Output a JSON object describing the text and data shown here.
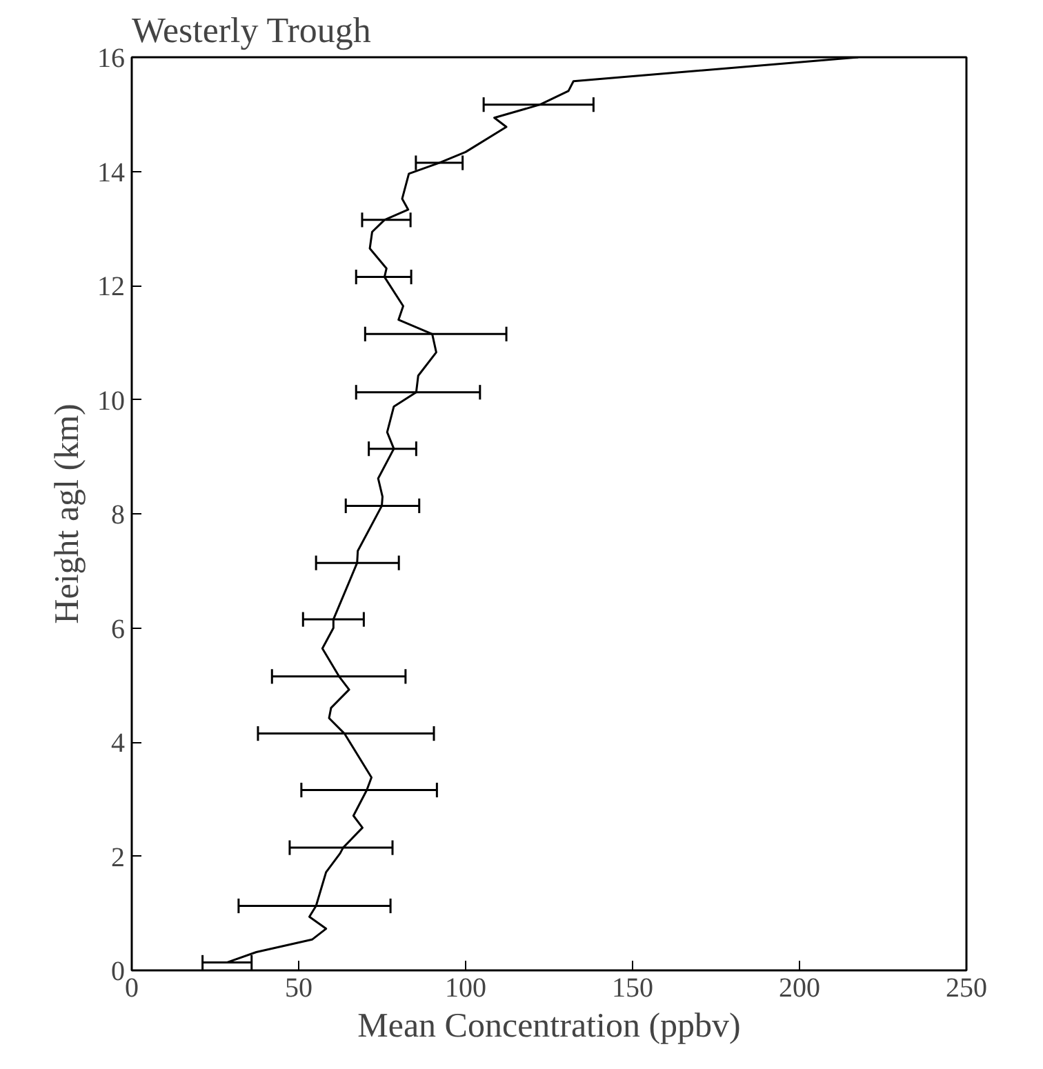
{
  "chart_data": {
    "type": "line",
    "title": "Westerly Trough",
    "xlabel": "Mean Concentration (ppbv)",
    "ylabel": "Height agl (km)",
    "xlim": [
      0,
      250
    ],
    "xticks": [
      0,
      50,
      100,
      150,
      200,
      250
    ],
    "ylim": [
      0,
      16
    ],
    "yticks": [
      0,
      2,
      4,
      6,
      8,
      10,
      12,
      14,
      16
    ],
    "marker": "none",
    "line_style": "solid",
    "series": [
      {
        "color": "#000000",
        "x": [
          28.6,
          37.3,
          54.0,
          58.2,
          53.2,
          55.2,
          58.2,
          62.4,
          63.3,
          69.1,
          66.4,
          70.4,
          71.8,
          63.7,
          59.1,
          59.7,
          65.1,
          62.1,
          57.1,
          60.4,
          60.4,
          67.5,
          67.7,
          74.9,
          75.1,
          73.8,
          78.5,
          76.5,
          78.5,
          85.2,
          85.8,
          91.2,
          90.0,
          79.9,
          81.3,
          75.7,
          76.3,
          71.3,
          72.0,
          75.7,
          82.8,
          81.0,
          83.0,
          92.1,
          100.0,
          112.2,
          108.6,
          122.3,
          130.8,
          132.3,
          217.6
        ],
        "values": [
          0.14,
          0.32,
          0.54,
          0.73,
          0.94,
          1.13,
          1.72,
          2.05,
          2.15,
          2.5,
          2.71,
          3.16,
          3.38,
          4.15,
          4.42,
          4.6,
          4.92,
          5.15,
          5.64,
          6.0,
          6.15,
          7.14,
          7.35,
          8.14,
          8.3,
          8.62,
          9.14,
          9.43,
          9.88,
          10.13,
          10.42,
          10.83,
          11.15,
          11.4,
          11.64,
          12.15,
          12.3,
          12.65,
          12.94,
          13.15,
          13.33,
          13.52,
          13.96,
          14.15,
          14.34,
          14.78,
          14.94,
          15.17,
          15.41,
          15.58,
          16.0
        ],
        "xerrors": [
          [
            21.2,
            35.9
          ],
          null,
          null,
          null,
          null,
          [
            32.0,
            77.5
          ],
          null,
          null,
          [
            47.3,
            78.1
          ],
          null,
          null,
          [
            50.8,
            91.4
          ],
          null,
          [
            37.8,
            90.5
          ],
          null,
          null,
          null,
          [
            42.0,
            82.0
          ],
          null,
          null,
          [
            51.3,
            69.5
          ],
          [
            55.2,
            80.0
          ],
          null,
          [
            64.1,
            86.1
          ],
          null,
          null,
          [
            71.0,
            85.2
          ],
          null,
          null,
          [
            67.2,
            104.3
          ],
          null,
          null,
          [
            69.9,
            112.2
          ],
          null,
          null,
          [
            67.2,
            83.7
          ],
          null,
          null,
          null,
          [
            69.0,
            83.5
          ],
          null,
          null,
          null,
          [
            85.1,
            99.1
          ],
          null,
          null,
          null,
          [
            105.4,
            138.3
          ],
          null,
          null,
          null
        ]
      }
    ]
  }
}
